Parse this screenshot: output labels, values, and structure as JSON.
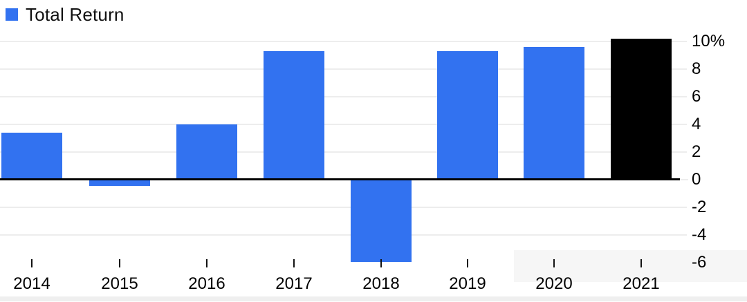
{
  "chart_data": {
    "type": "bar",
    "title": "",
    "xlabel": "",
    "ylabel": "",
    "legend_position": "top-left",
    "yaxis_side": "right",
    "grid": "horizontal",
    "categories": [
      "2014",
      "2015",
      "2016",
      "2017",
      "2018",
      "2019",
      "2020",
      "2021"
    ],
    "series": [
      {
        "name": "Total Return",
        "values": [
          3.4,
          -0.4,
          4.0,
          9.3,
          -5.9,
          9.3,
          9.6,
          10.2
        ]
      }
    ],
    "bar_colors": [
      "#3272F0",
      "#3272F0",
      "#3272F0",
      "#3272F0",
      "#3272F0",
      "#3272F0",
      "#3272F0",
      "#000000"
    ],
    "ytick_labels": [
      "10%",
      "8",
      "6",
      "4",
      "2",
      "0",
      "-2",
      "-4",
      "-6"
    ],
    "ytick_values": [
      10,
      8,
      6,
      4,
      2,
      0,
      -2,
      -4,
      -6
    ],
    "gridline_values": [
      10,
      8,
      6,
      4,
      2,
      -2,
      -4
    ],
    "ylim": [
      -6.5,
      10.5
    ]
  },
  "colors": {
    "accent_blue": "#3272F0",
    "bar_black": "#000000",
    "gridline": "#ededed",
    "axis_line": "#000000",
    "text": "#111111",
    "background": "#ffffff",
    "artifact_bottom_strip": "#efefef",
    "artifact_corner_rect": "#f6f6f6"
  }
}
